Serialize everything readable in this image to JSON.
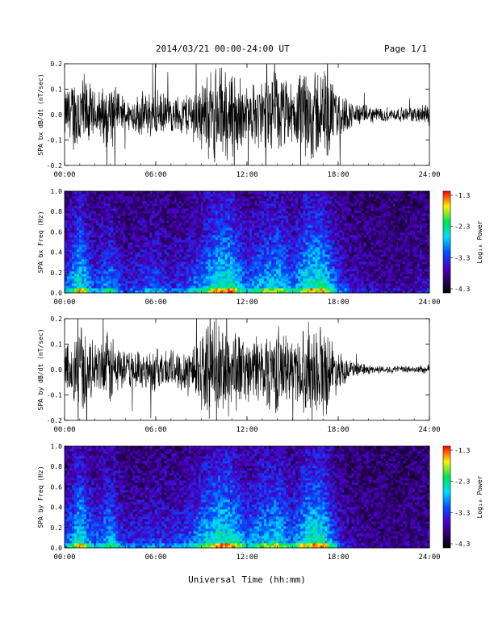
{
  "header": {
    "title": "2014/03/21  00:00-24:00 UT",
    "page": "Page 1/1"
  },
  "xlabel": "Universal Time (hh:mm)",
  "chart_data": [
    {
      "type": "line",
      "ylabel": "SPA bx dB/dt (nT/sec)",
      "x_ticks": [
        "00:00",
        "06:00",
        "12:00",
        "18:00",
        "24:00"
      ],
      "xlim": [
        0,
        24
      ],
      "ylim": [
        -0.2,
        0.2
      ],
      "y_ticks": [
        "-0.2",
        "-0.1",
        "0.0",
        "0.1",
        "0.2"
      ],
      "x": [
        0,
        1,
        2,
        3,
        4,
        5,
        6,
        7,
        8,
        9,
        10,
        11,
        12,
        13,
        14,
        15,
        16,
        17,
        18,
        19,
        20,
        21,
        22,
        23,
        24
      ],
      "envelope": [
        0.1,
        0.2,
        0.09,
        0.14,
        0.06,
        0.09,
        0.1,
        0.07,
        0.09,
        0.14,
        0.2,
        0.2,
        0.11,
        0.15,
        0.18,
        0.12,
        0.2,
        0.2,
        0.1,
        0.05,
        0.035,
        0.03,
        0.028,
        0.03,
        0.05
      ]
    },
    {
      "type": "heatmap",
      "ylabel": "SPA bx Freq (Hz)",
      "x_ticks": [
        "00:00",
        "06:00",
        "12:00",
        "18:00",
        "24:00"
      ],
      "xlim": [
        0,
        24
      ],
      "ylim": [
        0,
        1.0
      ],
      "y_ticks": [
        "0.0",
        "0.2",
        "0.4",
        "0.6",
        "0.8",
        "1.0"
      ],
      "colorbar": {
        "label": "Log₁₀ Power",
        "ticks": [
          "-1.3",
          "-2.3",
          "-3.3",
          "-4.3"
        ],
        "range": [
          -4.3,
          -1.3
        ]
      }
    },
    {
      "type": "line",
      "ylabel": "SPA by dB/dt (nT/sec)",
      "x_ticks": [
        "00:00",
        "06:00",
        "12:00",
        "18:00",
        "24:00"
      ],
      "xlim": [
        0,
        24
      ],
      "ylim": [
        -0.2,
        0.2
      ],
      "y_ticks": [
        "-0.2",
        "-0.1",
        "0.0",
        "0.1",
        "0.2"
      ],
      "x": [
        0,
        1,
        2,
        3,
        4,
        5,
        6,
        7,
        8,
        9,
        10,
        11,
        12,
        13,
        14,
        15,
        16,
        17,
        18,
        19,
        20,
        21,
        22,
        23,
        24
      ],
      "envelope": [
        0.09,
        0.2,
        0.1,
        0.16,
        0.07,
        0.08,
        0.09,
        0.08,
        0.1,
        0.16,
        0.2,
        0.2,
        0.12,
        0.16,
        0.18,
        0.12,
        0.2,
        0.2,
        0.08,
        0.03,
        0.02,
        0.015,
        0.015,
        0.015,
        0.02
      ]
    },
    {
      "type": "heatmap",
      "ylabel": "SPA by Freq (Hz)",
      "x_ticks": [
        "00:00",
        "06:00",
        "12:00",
        "18:00",
        "24:00"
      ],
      "xlim": [
        0,
        24
      ],
      "ylim": [
        0,
        1.0
      ],
      "y_ticks": [
        "0.0",
        "0.2",
        "0.4",
        "0.6",
        "0.8",
        "1.0"
      ],
      "colorbar": {
        "label": "Log₁₀ Power",
        "ticks": [
          "-1.3",
          "-2.3",
          "-3.3",
          "-4.3"
        ],
        "range": [
          -4.3,
          -1.3
        ]
      }
    }
  ]
}
